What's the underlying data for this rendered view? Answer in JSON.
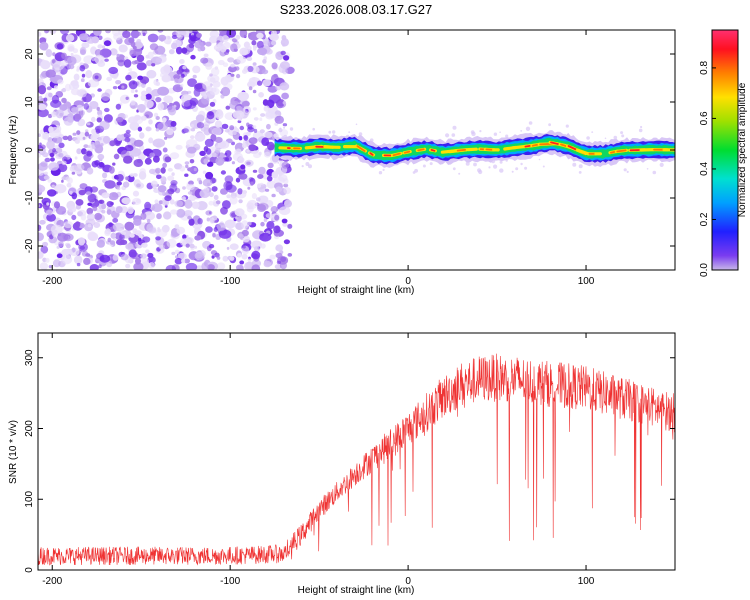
{
  "figure_title": "S233.2026.008.03.17.G27",
  "chart_data": [
    {
      "type": "heatmap",
      "title": "S233.2026.008.03.17.G27",
      "xlabel": "Height of straight line (km)",
      "ylabel": "Frequency (Hz)",
      "xlim": [
        -208,
        150
      ],
      "ylim": [
        -25,
        25
      ],
      "xticks": [
        -200,
        -100,
        0,
        100
      ],
      "yticks": [
        -20,
        -10,
        0,
        10,
        20
      ],
      "noise_region_x": [
        -208,
        -72
      ],
      "ridge": {
        "x_start": -75,
        "x": [
          -75,
          -60,
          -50,
          -40,
          -30,
          -20,
          -10,
          0,
          10,
          20,
          30,
          40,
          50,
          60,
          70,
          80,
          90,
          100,
          110,
          120,
          130,
          140,
          150
        ],
        "frequency": [
          0.5,
          0.3,
          0.8,
          0.5,
          1.0,
          -1.0,
          -1.2,
          -0.4,
          0.2,
          -0.5,
          0.0,
          0.2,
          0.0,
          0.5,
          0.9,
          1.6,
          0.8,
          -0.8,
          -0.8,
          -0.1,
          0.0,
          0.1,
          0.0
        ]
      },
      "colorbar": {
        "label": "Normalized spectral amplitude",
        "range": [
          0,
          0.95
        ],
        "ticks": [
          0.0,
          0.2,
          0.4,
          0.6,
          0.8
        ]
      }
    },
    {
      "type": "line",
      "xlabel": "Height of straight line (km)",
      "ylabel": "SNR (10 * v/v)",
      "xlim": [
        -208,
        150
      ],
      "ylim": [
        0,
        335
      ],
      "xticks": [
        -200,
        -100,
        0,
        100
      ],
      "yticks": [
        0,
        100,
        200,
        300
      ],
      "color": "#ef3232",
      "series": [
        {
          "name": "SNR",
          "x": [
            -208,
            -190,
            -170,
            -150,
            -130,
            -110,
            -90,
            -70,
            -60,
            -50,
            -40,
            -30,
            -20,
            -10,
            0,
            10,
            20,
            30,
            40,
            50,
            60,
            70,
            80,
            90,
            100,
            110,
            120,
            130,
            140,
            150
          ],
          "mean": [
            20,
            20,
            20,
            20,
            20,
            20,
            21,
            23,
            50,
            85,
            110,
            135,
            158,
            178,
            200,
            222,
            245,
            262,
            270,
            272,
            270,
            266,
            263,
            260,
            257,
            250,
            243,
            236,
            228,
            222
          ]
        }
      ]
    }
  ]
}
